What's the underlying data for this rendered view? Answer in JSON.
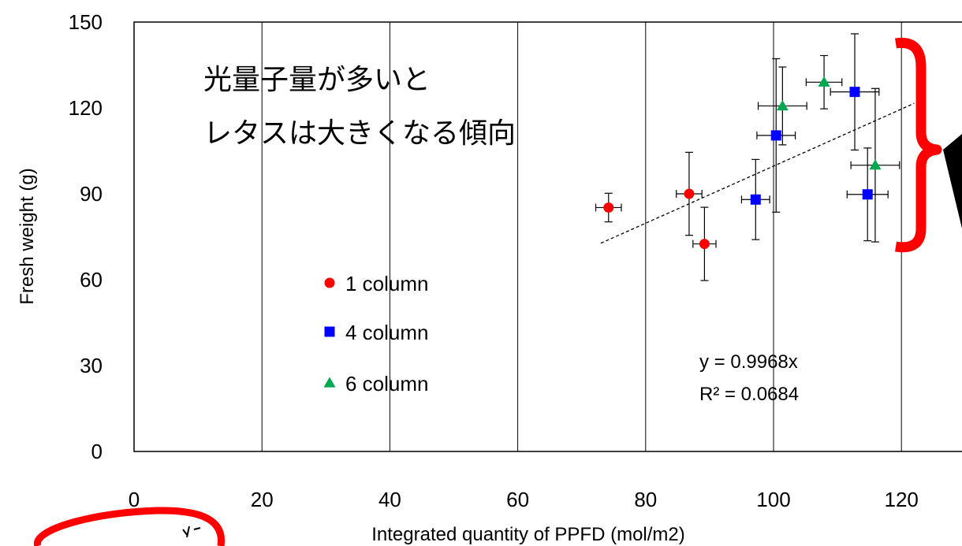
{
  "chart_data": {
    "type": "scatter",
    "xlabel": "Integrated quantity of PPFD (mol/m2)",
    "ylabel": "Fresh weight (g)",
    "xlim": [
      0,
      140
    ],
    "ylim": [
      0,
      150
    ],
    "xticks": [
      0,
      20,
      40,
      60,
      80,
      100,
      120
    ],
    "yticks": [
      0,
      30,
      60,
      90,
      120,
      150
    ],
    "grid": "vertical",
    "legend_position": "left",
    "series": [
      {
        "name": "1 column",
        "marker": "circle",
        "color": "#ff0000",
        "points": [
          {
            "x": 74.2,
            "y": 85.2,
            "xerr": 2.0,
            "yerr": 5.0
          },
          {
            "x": 86.8,
            "y": 90.0,
            "xerr": 2.0,
            "yerr": 14.5
          },
          {
            "x": 89.2,
            "y": 72.5,
            "xerr": 1.8,
            "yerr": 12.8
          }
        ]
      },
      {
        "name": "4 column",
        "marker": "square",
        "color": "#0000ff",
        "points": [
          {
            "x": 97.2,
            "y": 88.0,
            "xerr": 2.2,
            "yerr": 14.0
          },
          {
            "x": 100.4,
            "y": 110.4,
            "xerr": 3.0,
            "yerr": 26.8
          },
          {
            "x": 112.7,
            "y": 125.6,
            "xerr": 3.8,
            "yerr": 20.3
          },
          {
            "x": 114.7,
            "y": 89.8,
            "xerr": 3.2,
            "yerr": 16.2
          }
        ]
      },
      {
        "name": "6 column",
        "marker": "triangle",
        "color": "#00a850",
        "points": [
          {
            "x": 101.4,
            "y": 120.7,
            "xerr": 3.8,
            "yerr": 13.6
          },
          {
            "x": 107.9,
            "y": 129.0,
            "xerr": 2.8,
            "yerr": 9.3
          },
          {
            "x": 115.9,
            "y": 100.0,
            "xerr": 3.8,
            "yerr": 26.8
          }
        ]
      }
    ],
    "trendline": {
      "x": [
        73,
        122
      ],
      "y": [
        72.76,
        121.6
      ],
      "style": "dashed",
      "equation": "y = 0.9968x",
      "r_squared": "R² = 0.0684"
    },
    "annotations": {
      "jp_line1": "光量子量が多いと",
      "jp_line2": "レタスは大きくなる傾向"
    }
  },
  "colors": {
    "brace": "#ff0000",
    "circle": "#ff0000"
  }
}
